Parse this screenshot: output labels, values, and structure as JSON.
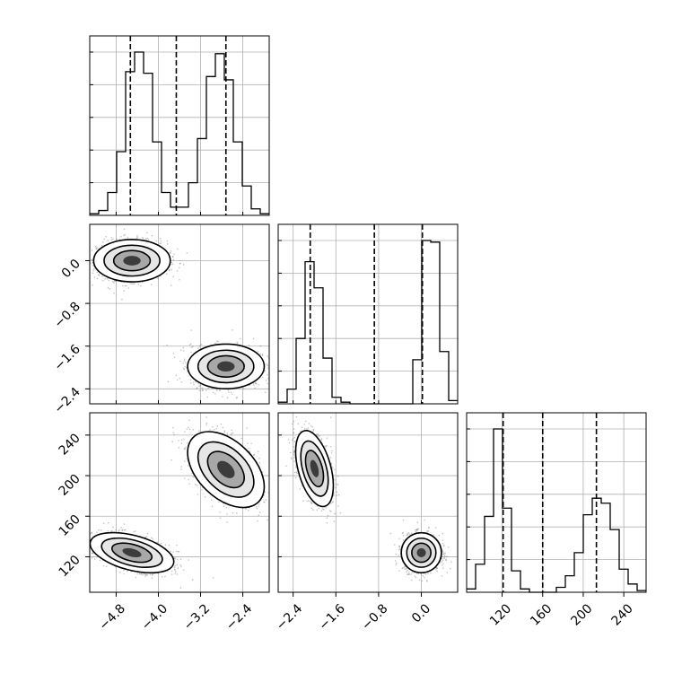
{
  "chart_data": {
    "type": "corner",
    "title": "",
    "grid": true,
    "colors": {
      "line": "#000000",
      "grid": "#b0b0b0",
      "background": "#ffffff"
    },
    "parameters": [
      {
        "name": "",
        "range": [
          -5.3,
          -1.9
        ],
        "ticks": [
          {
            "value": -4.8,
            "label": "−4.8"
          },
          {
            "value": -4.0,
            "label": "−4.0"
          },
          {
            "value": -3.2,
            "label": "−3.2"
          },
          {
            "value": -2.4,
            "label": "−2.4"
          }
        ],
        "quantiles": [
          -4.53,
          -3.66,
          -2.72
        ]
      },
      {
        "name": "",
        "range": [
          -2.68,
          0.68
        ],
        "ticks": [
          {
            "value": -2.4,
            "label": "−2.4"
          },
          {
            "value": -1.6,
            "label": "−1.6"
          },
          {
            "value": -0.8,
            "label": "−0.8"
          },
          {
            "value": 0.0,
            "label": "0.0"
          }
        ],
        "quantiles": [
          -2.08,
          -0.88,
          0.02
        ]
      },
      {
        "name": "",
        "range": [
          85,
          262
        ],
        "ticks": [
          {
            "value": 120,
            "label": "120"
          },
          {
            "value": 160,
            "label": "160"
          },
          {
            "value": 200,
            "label": "200"
          },
          {
            "value": 240,
            "label": "240"
          }
        ],
        "quantiles": [
          121,
          160,
          213
        ]
      }
    ],
    "histograms": [
      {
        "param": 0,
        "edges_start": -5.3,
        "bin_width": 0.17,
        "values": [
          0.01,
          0.03,
          0.14,
          0.39,
          0.88,
          1.0,
          0.87,
          0.45,
          0.14,
          0.05,
          0.05,
          0.2,
          0.47,
          0.85,
          0.99,
          0.83,
          0.45,
          0.18,
          0.04,
          0.01
        ]
      },
      {
        "param": 1,
        "edges_start": -2.68,
        "bin_width": 0.168,
        "values": [
          0.01,
          0.09,
          0.4,
          0.87,
          0.71,
          0.28,
          0.04,
          0.01,
          0.0,
          0.0,
          0.0,
          0.0,
          0.0,
          0.0,
          0.0,
          0.27,
          1.0,
          0.99,
          0.32,
          0.02
        ]
      },
      {
        "param": 2,
        "edges_start": 85,
        "bin_width": 8.85,
        "values": [
          0.02,
          0.17,
          0.46,
          0.99,
          0.51,
          0.13,
          0.02,
          0.0,
          0.0,
          0.0,
          0.03,
          0.1,
          0.24,
          0.47,
          0.57,
          0.54,
          0.38,
          0.14,
          0.05,
          0.01
        ]
      }
    ],
    "clusters_2d": [
      {
        "x_param": 0,
        "y_param": 1,
        "center": [
          -4.5,
          0.0
        ],
        "sd": [
          0.33,
          0.18
        ],
        "rho": 0.0
      },
      {
        "x_param": 0,
        "y_param": 1,
        "center": [
          -2.72,
          -1.98
        ],
        "sd": [
          0.33,
          0.19
        ],
        "rho": 0.0
      },
      {
        "x_param": 0,
        "y_param": 2,
        "center": [
          -4.5,
          124
        ],
        "sd": [
          0.36,
          9.0
        ],
        "rho": -0.45
      },
      {
        "x_param": 0,
        "y_param": 2,
        "center": [
          -2.72,
          206
        ],
        "sd": [
          0.33,
          17.0
        ],
        "rho": -0.45
      },
      {
        "x_param": 1,
        "y_param": 2,
        "center": [
          -2.0,
          207
        ],
        "sd": [
          0.16,
          17.0
        ],
        "rho": -0.45
      },
      {
        "x_param": 1,
        "y_param": 2,
        "center": [
          0.0,
          124
        ],
        "sd": [
          0.17,
          9.0
        ],
        "rho": 0.0
      }
    ]
  }
}
